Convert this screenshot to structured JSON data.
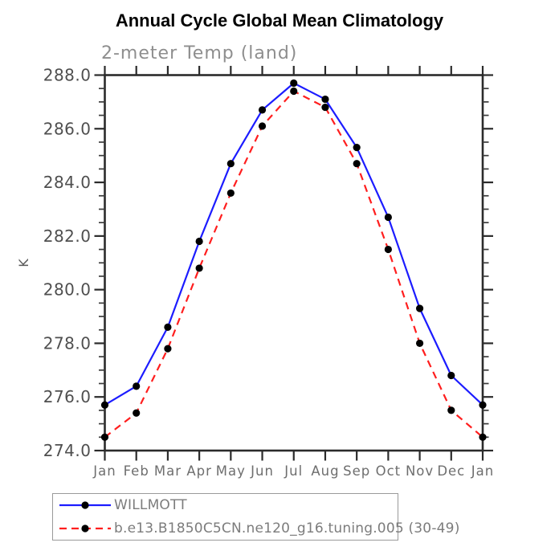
{
  "chart_data": {
    "type": "line",
    "title": "Annual Cycle Global Mean Climatology",
    "subtitle": "2-meter Temp (land)",
    "xlabel": "",
    "ylabel": "K",
    "x_labels": [
      "Jan",
      "Feb",
      "Mar",
      "Apr",
      "May",
      "Jun",
      "Jul",
      "Aug",
      "Sep",
      "Oct",
      "Nov",
      "Dec",
      "Jan"
    ],
    "ylim": [
      274.0,
      288.0
    ],
    "y_major_step": 2.0,
    "y_minor_step": 0.5,
    "y_tick_format": "one-decimal",
    "grid": false,
    "legend_position": "bottom-left",
    "axis_color": "#2b2b2b",
    "marker": "filled-circle",
    "marker_color": "#000000",
    "series": [
      {
        "name": "WILLMOTT",
        "color": "#1c1cff",
        "style": "solid",
        "values": [
          275.7,
          276.4,
          278.6,
          281.8,
          284.7,
          286.7,
          287.7,
          287.1,
          285.3,
          282.7,
          279.3,
          276.8,
          275.7
        ]
      },
      {
        "name": "b.e13.B1850C5CN.ne120_g16.tuning.005 (30-49)",
        "color": "#ff1e1e",
        "style": "dashed",
        "values": [
          274.5,
          275.4,
          277.8,
          280.8,
          283.6,
          286.1,
          287.4,
          286.8,
          284.7,
          281.5,
          278.0,
          275.5,
          274.5
        ]
      }
    ]
  }
}
